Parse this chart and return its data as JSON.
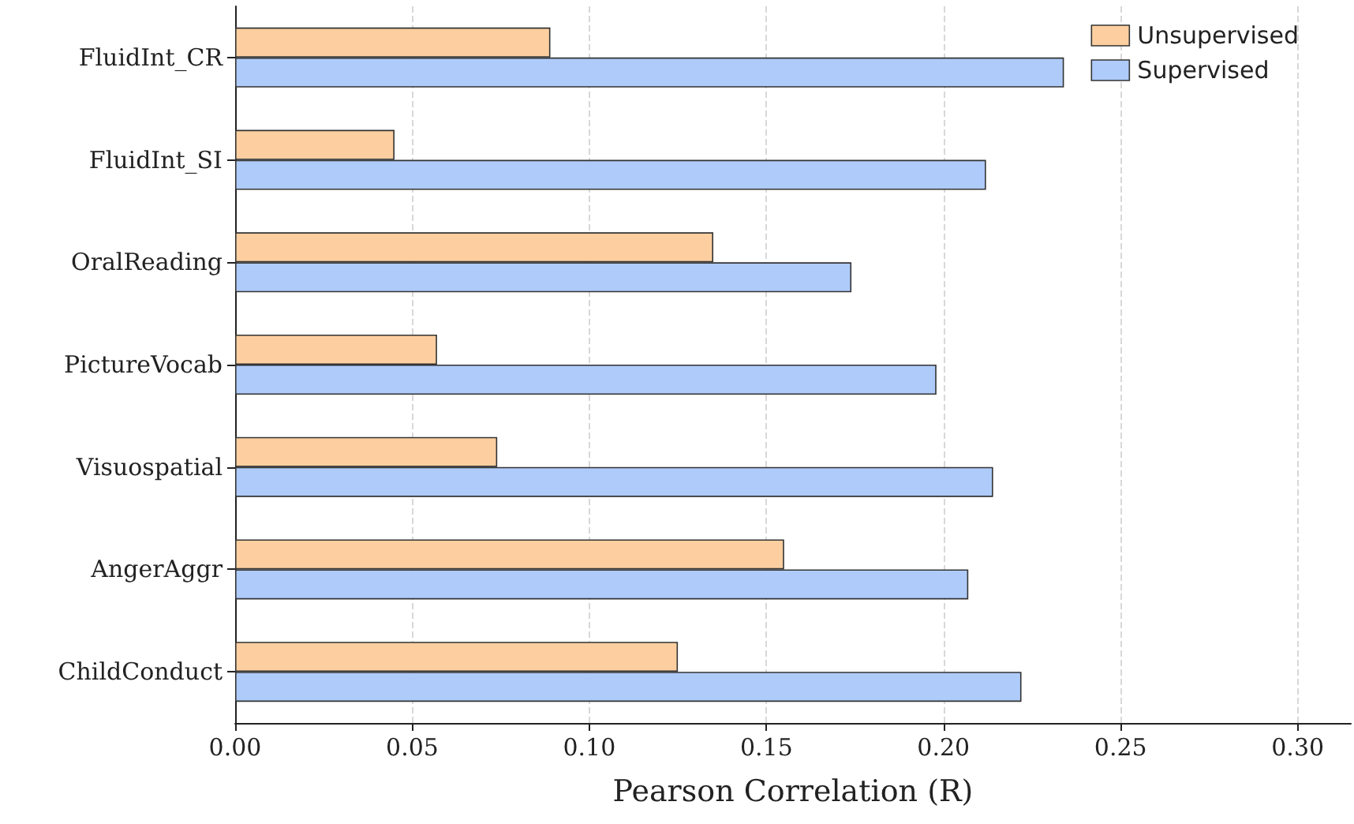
{
  "chart_data": {
    "type": "bar",
    "orientation": "horizontal",
    "xlabel": "Pearson Correlation (R)",
    "categories": [
      "FluidInt_CR",
      "FluidInt_SI",
      "OralReading",
      "PictureVocab",
      "Visuospatial",
      "AngerAggr",
      "ChildConduct"
    ],
    "series": [
      {
        "name": "Unsupervised",
        "color": "#fdcfa0",
        "values": [
          0.089,
          0.045,
          0.135,
          0.057,
          0.074,
          0.155,
          0.125
        ]
      },
      {
        "name": "Supervised",
        "color": "#aecbfa",
        "values": [
          0.234,
          0.212,
          0.174,
          0.198,
          0.214,
          0.207,
          0.222
        ]
      }
    ],
    "xlim": [
      0,
      0.315
    ],
    "xticks": [
      {
        "value": 0,
        "label": "0.00"
      },
      {
        "value": 0.05,
        "label": "0.05"
      },
      {
        "value": 0.1,
        "label": "0.10"
      },
      {
        "value": 0.15,
        "label": "0.15"
      },
      {
        "value": 0.2,
        "label": "0.20"
      },
      {
        "value": 0.25,
        "label": "0.25"
      },
      {
        "value": 0.3,
        "label": "0.30"
      }
    ],
    "grid": "x",
    "legend": "top right"
  }
}
